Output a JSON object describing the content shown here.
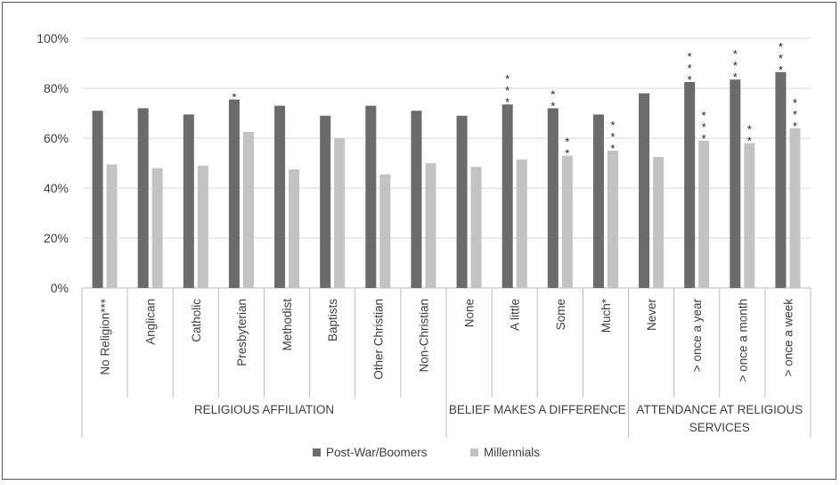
{
  "colors": {
    "series1": "#6b6b6b",
    "series2": "#c3c3c3",
    "grid": "#d9d9d9",
    "axis": "#bfbfbf"
  },
  "chart_data": {
    "type": "bar",
    "ylim": [
      0,
      100
    ],
    "y_ticks": [
      "0%",
      "20%",
      "40%",
      "60%",
      "80%",
      "100%"
    ],
    "grid": true,
    "legend_position": "bottom",
    "categories": [
      "No Religion***",
      "Anglican",
      "Catholic",
      "Presbyterian",
      "Methodist",
      "Baptists",
      "Other Christian",
      "Non-Christian",
      "None",
      "A little",
      "Some",
      "Much*",
      "Never",
      "> once a year",
      "> once a month",
      "> once a week"
    ],
    "groups": [
      {
        "label": "RELIGIOUS AFFILIATION",
        "start": 0,
        "end": 7
      },
      {
        "label": "BELIEF MAKES A DIFFERENCE",
        "start": 8,
        "end": 11
      },
      {
        "label": "ATTENDANCE AT RELIGIOUS SERVICES",
        "start": 12,
        "end": 15
      }
    ],
    "series": [
      {
        "name": "Post-War/Boomers",
        "values": [
          71,
          72,
          69.5,
          75.5,
          73,
          69,
          73,
          71,
          69,
          73.5,
          72,
          69.5,
          78,
          82.5,
          83.5,
          86.5
        ],
        "stars": [
          "",
          "",
          "",
          "*",
          "",
          "",
          "",
          "",
          "",
          "***",
          "**",
          "",
          "",
          "***",
          "***",
          "***"
        ]
      },
      {
        "name": "Millennials",
        "values": [
          49.5,
          48,
          49,
          62.5,
          47.5,
          60,
          45.5,
          50,
          48.5,
          51.5,
          53,
          55,
          52.5,
          59,
          58,
          64
        ],
        "stars": [
          "",
          "",
          "",
          "",
          "",
          "",
          "",
          "",
          "",
          "",
          "**",
          "***",
          "",
          "***",
          "**",
          "***"
        ]
      }
    ]
  }
}
